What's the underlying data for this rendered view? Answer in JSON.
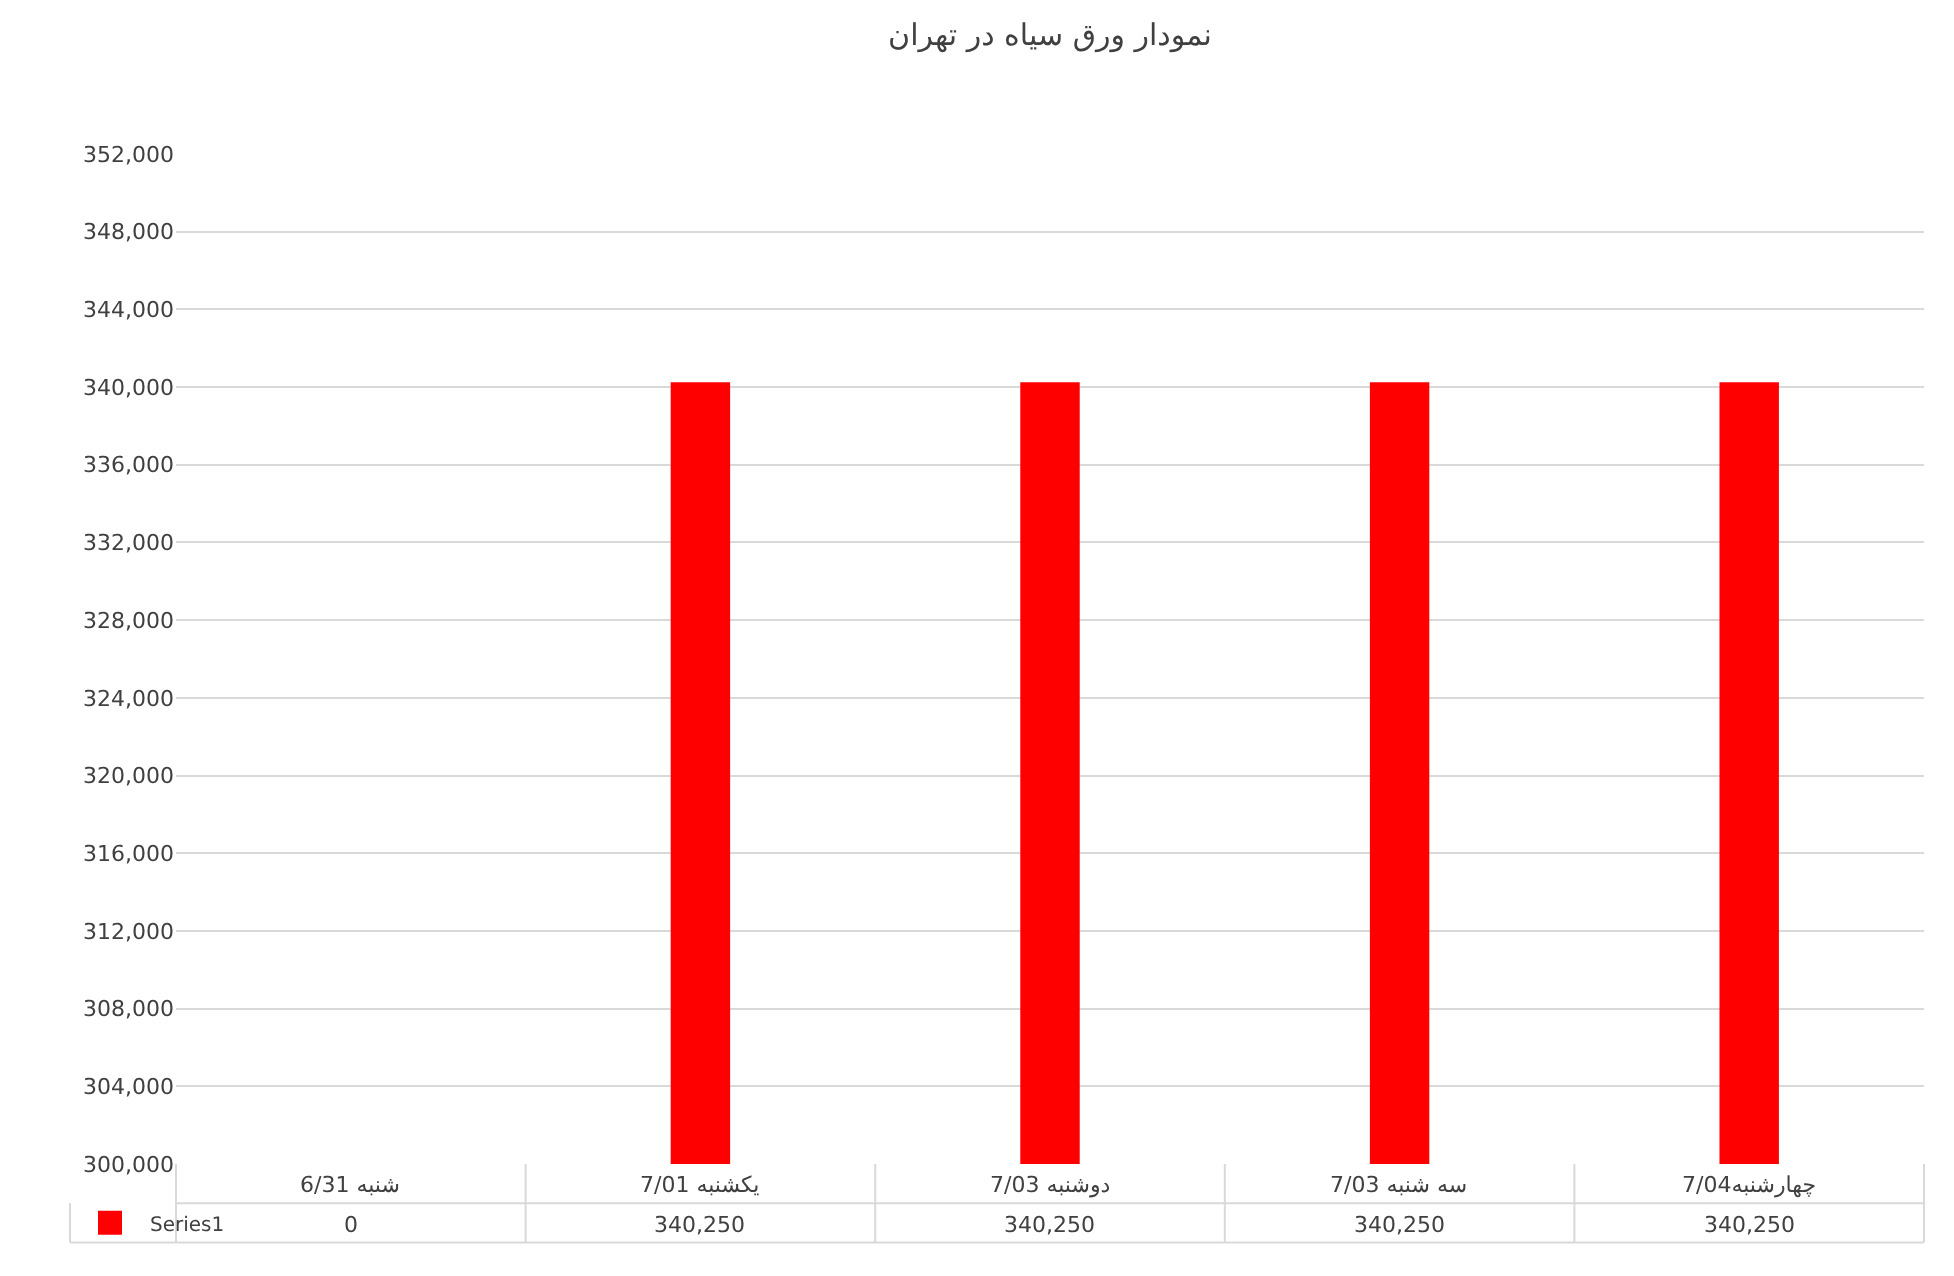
{
  "chart_data": {
    "type": "bar",
    "title": "نمودار ورق سیاه در تهران",
    "categories": [
      "شنبه 6/31",
      "یکشنبه 7/01",
      "دوشنبه 7/03",
      "سه شنبه 7/03",
      "چهارشنبه7/04"
    ],
    "series": [
      {
        "name": "Series1",
        "color": "#ff0000",
        "values": [
          null,
          340250,
          340250,
          340250,
          340250
        ],
        "value_labels": [
          "0",
          "340,250",
          "340,250",
          "340,250",
          "340,250"
        ]
      }
    ],
    "ylim": [
      300000,
      352000
    ],
    "yticks": [
      {
        "value": 300000,
        "label": "300,000"
      },
      {
        "value": 304000,
        "label": "304,000"
      },
      {
        "value": 308000,
        "label": "308,000"
      },
      {
        "value": 312000,
        "label": "312,000"
      },
      {
        "value": 316000,
        "label": "316,000"
      },
      {
        "value": 320000,
        "label": "320,000"
      },
      {
        "value": 324000,
        "label": "324,000"
      },
      {
        "value": 328000,
        "label": "328,000"
      },
      {
        "value": 332000,
        "label": "332,000"
      },
      {
        "value": 336000,
        "label": "336,000"
      },
      {
        "value": 340000,
        "label": "340,000"
      },
      {
        "value": 344000,
        "label": "344,000"
      },
      {
        "value": 348000,
        "label": "348,000"
      },
      {
        "value": 352000,
        "label": "352,000"
      }
    ],
    "grid": true,
    "legend": "bottom left"
  }
}
